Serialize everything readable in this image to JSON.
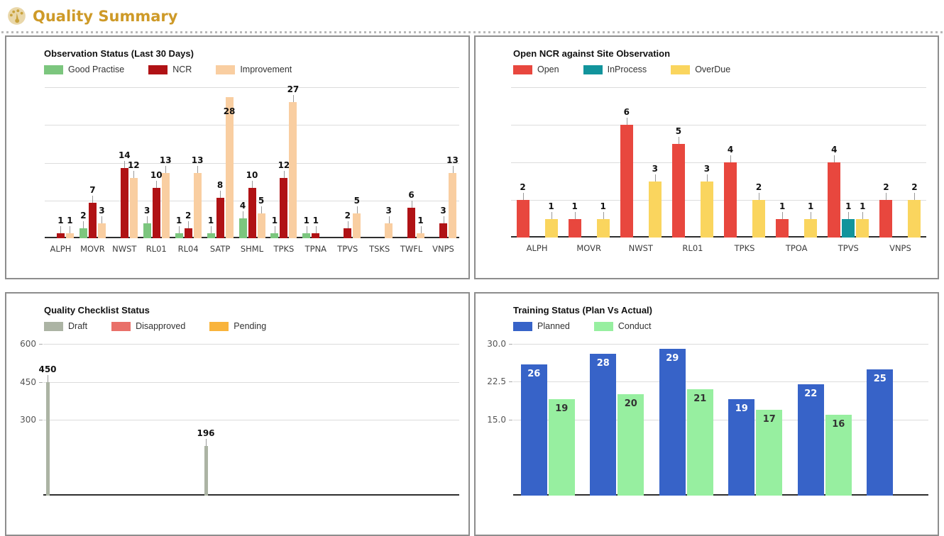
{
  "header": {
    "title": "Quality Summary",
    "icon": "gauge-icon"
  },
  "chart_data": [
    {
      "type": "bar",
      "title": "Observation Status (Last 30 Days)",
      "categories": [
        "ALPH",
        "MOVR",
        "NWST",
        "RL01",
        "RL04",
        "SATP",
        "SHML",
        "TPKS",
        "TPNA",
        "TPVS",
        "TSKS",
        "TWFL",
        "VNPS"
      ],
      "series": [
        {
          "name": "Good Practise",
          "color": "#7CC67E",
          "values": [
            0,
            2,
            0,
            3,
            1,
            1,
            4,
            1,
            1,
            0,
            0,
            0,
            0
          ]
        },
        {
          "name": "NCR",
          "color": "#B01215",
          "values": [
            1,
            7,
            14,
            10,
            2,
            8,
            10,
            12,
            1,
            2,
            0,
            6,
            3
          ]
        },
        {
          "name": "Improvement",
          "color": "#F9CEA1",
          "values": [
            1,
            3,
            12,
            13,
            13,
            28,
            5,
            27,
            0,
            5,
            3,
            1,
            13
          ]
        }
      ],
      "ylim": [
        0,
        30
      ],
      "gridline_values": [
        7.5,
        15,
        22.5,
        30
      ],
      "y_ticks": [],
      "legend_position": "top",
      "value_labels": "above",
      "xlabel": "",
      "ylabel": ""
    },
    {
      "type": "bar",
      "title": "Open NCR against Site Observation",
      "categories": [
        "ALPH",
        "MOVR",
        "NWST",
        "RL01",
        "TPKS",
        "TPOA",
        "TPVS",
        "VNPS"
      ],
      "series": [
        {
          "name": "Open",
          "color": "#E8473E",
          "values": [
            2,
            1,
            6,
            5,
            4,
            1,
            4,
            2
          ]
        },
        {
          "name": "InProcess",
          "color": "#12949C",
          "values": [
            0,
            0,
            0,
            0,
            0,
            0,
            1,
            0
          ]
        },
        {
          "name": "OverDue",
          "color": "#FAD55E",
          "values": [
            1,
            1,
            3,
            3,
            2,
            1,
            1,
            2
          ]
        }
      ],
      "ylim": [
        0,
        8
      ],
      "gridline_values": [
        2,
        4,
        6,
        8
      ],
      "y_ticks": [],
      "legend_position": "top",
      "value_labels": "above",
      "xlabel": "",
      "ylabel": ""
    },
    {
      "type": "bar",
      "title": "Quality Checklist Status",
      "categories": [
        "",
        ""
      ],
      "series": [
        {
          "name": "Draft",
          "color": "#ACB4A4",
          "values": [
            450,
            196
          ]
        },
        {
          "name": "Disapproved",
          "color": "#E97069",
          "values": [
            null,
            null
          ]
        },
        {
          "name": "Pending",
          "color": "#F9B43C",
          "values": [
            null,
            null
          ]
        }
      ],
      "ylim": [
        0,
        600
      ],
      "gridline_values": [
        300,
        450,
        600
      ],
      "y_ticks": [
        {
          "value": 600,
          "label": "600"
        },
        {
          "value": 450,
          "label": "450"
        },
        {
          "value": 300,
          "label": "300"
        }
      ],
      "legend_position": "top",
      "value_labels": "above",
      "xlabel": "",
      "ylabel": ""
    },
    {
      "type": "bar",
      "title": "Training Status (Plan Vs Actual)",
      "categories": [
        "",
        "",
        "",
        "",
        "",
        ""
      ],
      "series": [
        {
          "name": "Planned",
          "color": "#3763C8",
          "label_color": "#FFFFFF",
          "values": [
            26,
            28,
            29,
            19,
            22,
            25
          ]
        },
        {
          "name": "Conduct",
          "color": "#97EFA0",
          "label_color": "#333333",
          "values": [
            19,
            20,
            21,
            17,
            16,
            null
          ]
        }
      ],
      "ylim": [
        0,
        30
      ],
      "gridline_values": [
        15,
        22.5,
        30
      ],
      "y_ticks": [
        {
          "value": 30,
          "label": "30.0"
        },
        {
          "value": 22.5,
          "label": "22.5"
        },
        {
          "value": 15,
          "label": "15.0"
        }
      ],
      "legend_position": "top",
      "value_labels": "inside",
      "xlabel": "",
      "ylabel": ""
    }
  ]
}
